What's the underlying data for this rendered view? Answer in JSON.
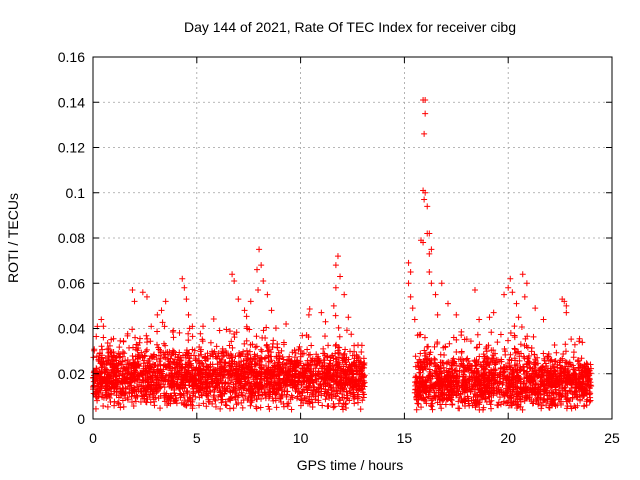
{
  "chart_data": {
    "type": "scatter",
    "title": "Day 144 of 2021, Rate Of TEC Index for receiver cibg",
    "xlabel": "GPS time / hours",
    "ylabel": "ROTI / TECUs",
    "xlim": [
      0,
      25
    ],
    "ylim": [
      0,
      0.16
    ],
    "xticks": [
      0,
      5,
      10,
      15,
      20,
      25
    ],
    "xtick_labels": [
      "0",
      "5",
      "10",
      "15",
      "20",
      "25"
    ],
    "yticks": [
      0,
      0.02,
      0.04,
      0.06,
      0.08,
      0.1,
      0.12,
      0.14,
      0.16
    ],
    "ytick_labels": [
      "0",
      "0.02",
      "0.04",
      "0.06",
      "0.08",
      "0.1",
      "0.12",
      "0.14",
      "0.16"
    ],
    "grid": true,
    "marker": "plus",
    "color": "#ff0000",
    "series": [
      {
        "name": "ROTI",
        "segments": [
          {
            "x_start": 0.0,
            "x_end": 13.1,
            "baseline": 0.018,
            "spread": 0.012
          },
          {
            "x_start": 15.5,
            "x_end": 24.0,
            "baseline": 0.016,
            "spread": 0.011
          }
        ],
        "peaks": [
          {
            "x": 0.4,
            "y": 0.044
          },
          {
            "x": 0.5,
            "y": 0.041
          },
          {
            "x": 0.5,
            "y": 0.036
          },
          {
            "x": 1.9,
            "y": 0.057
          },
          {
            "x": 2.0,
            "y": 0.052
          },
          {
            "x": 2.4,
            "y": 0.056
          },
          {
            "x": 2.6,
            "y": 0.054
          },
          {
            "x": 3.1,
            "y": 0.046
          },
          {
            "x": 3.3,
            "y": 0.048
          },
          {
            "x": 3.5,
            "y": 0.052
          },
          {
            "x": 4.3,
            "y": 0.062
          },
          {
            "x": 4.4,
            "y": 0.058
          },
          {
            "x": 4.6,
            "y": 0.046
          },
          {
            "x": 4.5,
            "y": 0.053
          },
          {
            "x": 5.3,
            "y": 0.041
          },
          {
            "x": 6.7,
            "y": 0.064
          },
          {
            "x": 6.8,
            "y": 0.061
          },
          {
            "x": 7.0,
            "y": 0.053
          },
          {
            "x": 7.3,
            "y": 0.048
          },
          {
            "x": 7.6,
            "y": 0.052
          },
          {
            "x": 7.9,
            "y": 0.066
          },
          {
            "x": 8.0,
            "y": 0.075
          },
          {
            "x": 8.1,
            "y": 0.068
          },
          {
            "x": 8.2,
            "y": 0.061
          },
          {
            "x": 7.95,
            "y": 0.057
          },
          {
            "x": 8.4,
            "y": 0.055
          },
          {
            "x": 8.6,
            "y": 0.048
          },
          {
            "x": 9.3,
            "y": 0.042
          },
          {
            "x": 10.4,
            "y": 0.046
          },
          {
            "x": 11.0,
            "y": 0.047
          },
          {
            "x": 11.2,
            "y": 0.043
          },
          {
            "x": 11.7,
            "y": 0.068
          },
          {
            "x": 11.8,
            "y": 0.072
          },
          {
            "x": 11.9,
            "y": 0.063
          },
          {
            "x": 11.7,
            "y": 0.058
          },
          {
            "x": 12.1,
            "y": 0.055
          },
          {
            "x": 12.3,
            "y": 0.045
          },
          {
            "x": 11.6,
            "y": 0.05
          },
          {
            "x": 15.2,
            "y": 0.069
          },
          {
            "x": 15.3,
            "y": 0.065
          },
          {
            "x": 15.2,
            "y": 0.06
          },
          {
            "x": 15.3,
            "y": 0.054
          },
          {
            "x": 15.4,
            "y": 0.049
          },
          {
            "x": 15.5,
            "y": 0.044
          },
          {
            "x": 15.9,
            "y": 0.141
          },
          {
            "x": 16.0,
            "y": 0.141
          },
          {
            "x": 16.0,
            "y": 0.135
          },
          {
            "x": 15.95,
            "y": 0.126
          },
          {
            "x": 15.9,
            "y": 0.101
          },
          {
            "x": 16.0,
            "y": 0.1
          },
          {
            "x": 15.95,
            "y": 0.097
          },
          {
            "x": 16.1,
            "y": 0.094
          },
          {
            "x": 15.8,
            "y": 0.079
          },
          {
            "x": 15.9,
            "y": 0.078
          },
          {
            "x": 16.1,
            "y": 0.082
          },
          {
            "x": 16.2,
            "y": 0.073
          },
          {
            "x": 16.2,
            "y": 0.082
          },
          {
            "x": 16.3,
            "y": 0.075
          },
          {
            "x": 16.2,
            "y": 0.065
          },
          {
            "x": 16.3,
            "y": 0.06
          },
          {
            "x": 16.5,
            "y": 0.055
          },
          {
            "x": 16.6,
            "y": 0.046
          },
          {
            "x": 16.8,
            "y": 0.06
          },
          {
            "x": 17.1,
            "y": 0.051
          },
          {
            "x": 17.5,
            "y": 0.046
          },
          {
            "x": 18.4,
            "y": 0.057
          },
          {
            "x": 18.6,
            "y": 0.044
          },
          {
            "x": 19.1,
            "y": 0.045
          },
          {
            "x": 19.3,
            "y": 0.047
          },
          {
            "x": 19.8,
            "y": 0.055
          },
          {
            "x": 20.0,
            "y": 0.058
          },
          {
            "x": 20.1,
            "y": 0.062
          },
          {
            "x": 20.2,
            "y": 0.056
          },
          {
            "x": 20.4,
            "y": 0.051
          },
          {
            "x": 20.5,
            "y": 0.045
          },
          {
            "x": 20.7,
            "y": 0.064
          },
          {
            "x": 20.9,
            "y": 0.06
          },
          {
            "x": 20.8,
            "y": 0.054
          },
          {
            "x": 21.3,
            "y": 0.049
          },
          {
            "x": 21.7,
            "y": 0.044
          },
          {
            "x": 22.6,
            "y": 0.053
          },
          {
            "x": 22.7,
            "y": 0.052
          },
          {
            "x": 22.8,
            "y": 0.05
          },
          {
            "x": 22.8,
            "y": 0.047
          }
        ]
      }
    ]
  }
}
